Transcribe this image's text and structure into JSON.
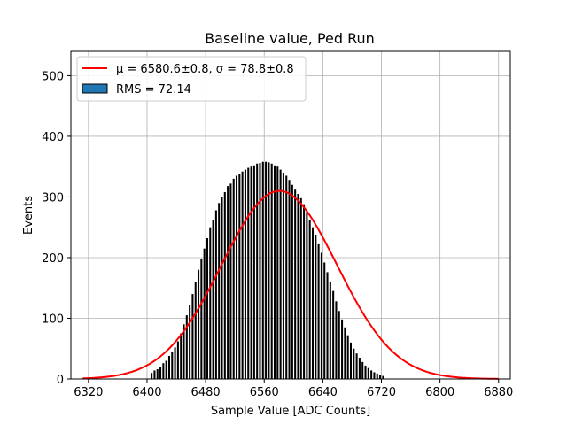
{
  "chart_data": {
    "type": "bar",
    "title": "Baseline value, Ped Run",
    "xlabel": "Sample Value [ADC Counts]",
    "ylabel": "Events",
    "xlim": [
      6296,
      6896
    ],
    "ylim": [
      0,
      540
    ],
    "xticks": [
      6320,
      6400,
      6480,
      6560,
      6640,
      6720,
      6800,
      6880
    ],
    "yticks": [
      0,
      100,
      200,
      300,
      400,
      500
    ],
    "grid": true,
    "legend_position": "top-left",
    "histogram": {
      "bin_width": 2,
      "counts": [
        {
          "x": 6406,
          "y": 10
        },
        {
          "x": 6410,
          "y": 14
        },
        {
          "x": 6414,
          "y": 16
        },
        {
          "x": 6418,
          "y": 20
        },
        {
          "x": 6422,
          "y": 26
        },
        {
          "x": 6426,
          "y": 30
        },
        {
          "x": 6430,
          "y": 38
        },
        {
          "x": 6434,
          "y": 45
        },
        {
          "x": 6438,
          "y": 52
        },
        {
          "x": 6442,
          "y": 62
        },
        {
          "x": 6446,
          "y": 75
        },
        {
          "x": 6450,
          "y": 90
        },
        {
          "x": 6454,
          "y": 105
        },
        {
          "x": 6458,
          "y": 122
        },
        {
          "x": 6462,
          "y": 140
        },
        {
          "x": 6466,
          "y": 160
        },
        {
          "x": 6470,
          "y": 180
        },
        {
          "x": 6474,
          "y": 198
        },
        {
          "x": 6478,
          "y": 215
        },
        {
          "x": 6482,
          "y": 232
        },
        {
          "x": 6486,
          "y": 250
        },
        {
          "x": 6490,
          "y": 262
        },
        {
          "x": 6494,
          "y": 278
        },
        {
          "x": 6498,
          "y": 290
        },
        {
          "x": 6502,
          "y": 300
        },
        {
          "x": 6506,
          "y": 308
        },
        {
          "x": 6510,
          "y": 318
        },
        {
          "x": 6514,
          "y": 322
        },
        {
          "x": 6518,
          "y": 330
        },
        {
          "x": 6522,
          "y": 335
        },
        {
          "x": 6526,
          "y": 338
        },
        {
          "x": 6530,
          "y": 342
        },
        {
          "x": 6534,
          "y": 345
        },
        {
          "x": 6538,
          "y": 348
        },
        {
          "x": 6542,
          "y": 350
        },
        {
          "x": 6546,
          "y": 352
        },
        {
          "x": 6550,
          "y": 355
        },
        {
          "x": 6554,
          "y": 356
        },
        {
          "x": 6558,
          "y": 358
        },
        {
          "x": 6562,
          "y": 358
        },
        {
          "x": 6566,
          "y": 357
        },
        {
          "x": 6570,
          "y": 355
        },
        {
          "x": 6574,
          "y": 352
        },
        {
          "x": 6578,
          "y": 350
        },
        {
          "x": 6582,
          "y": 345
        },
        {
          "x": 6586,
          "y": 340
        },
        {
          "x": 6590,
          "y": 335
        },
        {
          "x": 6594,
          "y": 328
        },
        {
          "x": 6598,
          "y": 320
        },
        {
          "x": 6602,
          "y": 312
        },
        {
          "x": 6606,
          "y": 305
        },
        {
          "x": 6610,
          "y": 298
        },
        {
          "x": 6614,
          "y": 288
        },
        {
          "x": 6618,
          "y": 275
        },
        {
          "x": 6622,
          "y": 262
        },
        {
          "x": 6626,
          "y": 250
        },
        {
          "x": 6630,
          "y": 238
        },
        {
          "x": 6634,
          "y": 222
        },
        {
          "x": 6638,
          "y": 208
        },
        {
          "x": 6642,
          "y": 192
        },
        {
          "x": 6646,
          "y": 176
        },
        {
          "x": 6650,
          "y": 160
        },
        {
          "x": 6654,
          "y": 145
        },
        {
          "x": 6658,
          "y": 128
        },
        {
          "x": 6662,
          "y": 112
        },
        {
          "x": 6666,
          "y": 98
        },
        {
          "x": 6670,
          "y": 85
        },
        {
          "x": 6674,
          "y": 72
        },
        {
          "x": 6678,
          "y": 60
        },
        {
          "x": 6682,
          "y": 50
        },
        {
          "x": 6686,
          "y": 42
        },
        {
          "x": 6690,
          "y": 35
        },
        {
          "x": 6694,
          "y": 28
        },
        {
          "x": 6698,
          "y": 22
        },
        {
          "x": 6702,
          "y": 18
        },
        {
          "x": 6706,
          "y": 14
        },
        {
          "x": 6710,
          "y": 11
        },
        {
          "x": 6714,
          "y": 9
        },
        {
          "x": 6718,
          "y": 7
        },
        {
          "x": 6722,
          "y": 5
        }
      ]
    },
    "series": [
      {
        "name": "μ = 6580.6±0.8, σ = 78.8±0.8",
        "type": "line",
        "color": "#ff0000",
        "mu": 6580.6,
        "sigma": 78.8,
        "amplitude": 310,
        "x_range": [
          6312,
          6880
        ]
      },
      {
        "name": "RMS = 72.14",
        "type": "bar",
        "color": "#000000",
        "legend_patch_color": "#1f77b4"
      }
    ]
  }
}
